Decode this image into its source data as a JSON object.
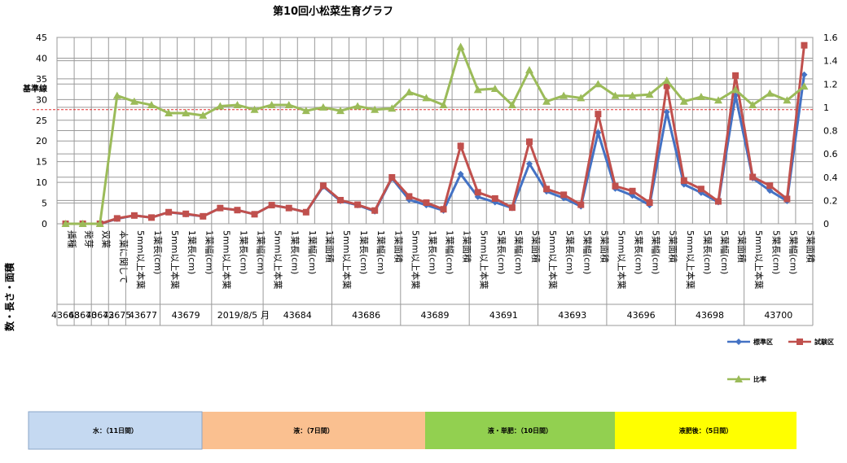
{
  "chart_data": {
    "type": "line",
    "title": "第10回小松菜生育グラフ",
    "ylabel": "数・長さ・面積",
    "ylim": [
      0,
      45
    ],
    "y2lim": [
      0,
      1.6
    ],
    "yticks": [
      0,
      5,
      10,
      15,
      20,
      25,
      30,
      35,
      40,
      45
    ],
    "y2ticks": [
      0,
      0.2,
      0.4,
      0.6,
      0.8,
      1,
      1.2,
      1.4,
      1.6
    ],
    "categories": [
      "播種",
      "発芽",
      "双葉",
      "本葉に関して",
      "5mm以上本葉",
      "1葉長(cm)",
      "5mm以上本葉",
      "1葉長(cm)",
      "1葉幅(cm)",
      "5mm以上本葉",
      "1葉長(cm)",
      "1葉幅(cm)",
      "5mm以上本葉",
      "1葉長(cm)",
      "1葉幅(cm)",
      "1葉面積",
      "5mm以上本葉",
      "1葉長(cm)",
      "1葉幅(cm)",
      "1葉面積",
      "5mm以上本葉",
      "1葉長(cm)",
      "1葉幅(cm)",
      "1葉面積",
      "5mm以上本葉",
      "5葉長(cm)",
      "5葉幅(cm)",
      "5葉面積",
      "5mm以上本葉",
      "5葉長(cm)",
      "5葉幅(cm)",
      "5葉面積",
      "5mm以上本葉",
      "5葉長(cm)",
      "5葉幅(cm)",
      "5葉面積",
      "5mm以上本葉",
      "5葉長(cm)",
      "5葉幅(cm)",
      "5葉面積",
      "5mm以上本葉",
      "5葉長(cm)",
      "5葉幅(cm)",
      "5葉面積"
    ],
    "date_groups": [
      {
        "label": "43668",
        "start": 0,
        "end": 0
      },
      {
        "label": "43670",
        "start": 1,
        "end": 1
      },
      {
        "label": "43672",
        "start": 2,
        "end": 2
      },
      {
        "label": "43675",
        "start": 3,
        "end": 3
      },
      {
        "label": "43677",
        "start": 4,
        "end": 5
      },
      {
        "label": "43679",
        "start": 6,
        "end": 8
      },
      {
        "label": "2019/8/5",
        "start": 9,
        "end": 11
      },
      {
        "label": "43684",
        "start": 12,
        "end": 15
      },
      {
        "label": "43686",
        "start": 16,
        "end": 19
      },
      {
        "label": "43689",
        "start": 20,
        "end": 23
      },
      {
        "label": "43691",
        "start": 24,
        "end": 27
      },
      {
        "label": "43693",
        "start": 28,
        "end": 31
      },
      {
        "label": "43696",
        "start": 32,
        "end": 35
      },
      {
        "label": "43698",
        "start": 36,
        "end": 39
      },
      {
        "label": "43700",
        "start": 40,
        "end": 43
      }
    ],
    "month_label": "月",
    "reference_line": {
      "label": "基準線",
      "y2": 0.98,
      "color": "#e03030"
    },
    "series": [
      {
        "name": "標準区",
        "axis": "left",
        "color": "#4472c4",
        "marker": "diamond",
        "values": [
          0,
          0,
          0,
          1.2,
          2,
          1.5,
          2.8,
          2.3,
          1.8,
          3.8,
          3.3,
          2.3,
          4.5,
          3.8,
          2.8,
          9,
          5.5,
          4.5,
          3,
          11,
          5.8,
          4.5,
          3.2,
          12,
          6.5,
          5.2,
          3.8,
          14.5,
          7.8,
          6.2,
          4.2,
          22,
          8.5,
          6.8,
          4.5,
          27,
          9.5,
          7.5,
          5.2,
          31,
          11,
          8,
          5.5,
          36
        ]
      },
      {
        "name": "試験区",
        "axis": "left",
        "color": "#c0504d",
        "marker": "square",
        "values": [
          0,
          0,
          0,
          1.3,
          2,
          1.5,
          2.8,
          2.4,
          1.8,
          3.8,
          3.3,
          2.3,
          4.5,
          3.8,
          2.8,
          9.2,
          5.7,
          4.6,
          3.2,
          11.2,
          6.6,
          5.1,
          3.5,
          18.8,
          7.6,
          6.1,
          3.9,
          19.8,
          8.4,
          7,
          4.6,
          26.5,
          9.1,
          7.9,
          5.1,
          33.3,
          10.4,
          8.4,
          5.4,
          35.8,
          11.3,
          9.2,
          6,
          43.1
        ]
      },
      {
        "name": "比率",
        "axis": "right",
        "color": "#9bbb59",
        "marker": "triangle",
        "values": [
          0,
          0,
          0,
          1.1,
          1.05,
          1.02,
          0.95,
          0.95,
          0.93,
          1.01,
          1.02,
          0.98,
          1.02,
          1.02,
          0.97,
          1.0,
          0.97,
          1.01,
          0.98,
          0.99,
          1.13,
          1.08,
          1.02,
          1.52,
          1.15,
          1.16,
          1.02,
          1.32,
          1.05,
          1.1,
          1.08,
          1.2,
          1.1,
          1.1,
          1.11,
          1.23,
          1.05,
          1.09,
          1.06,
          1.15,
          1.02,
          1.12,
          1.06,
          1.18
        ]
      }
    ],
    "legend": {
      "placement": "right",
      "entries": [
        "標準区",
        "試験区",
        "比率"
      ]
    }
  },
  "stage_bar": [
    {
      "label": "水：（11日間）",
      "color": "#c5d9f1"
    },
    {
      "label": "液：（7日間）",
      "color": "#fac090"
    },
    {
      "label": "液・単肥：（10日間）",
      "color": "#92d050"
    },
    {
      "label": "液肥後：（5日間）",
      "color": "#ffff00"
    }
  ]
}
